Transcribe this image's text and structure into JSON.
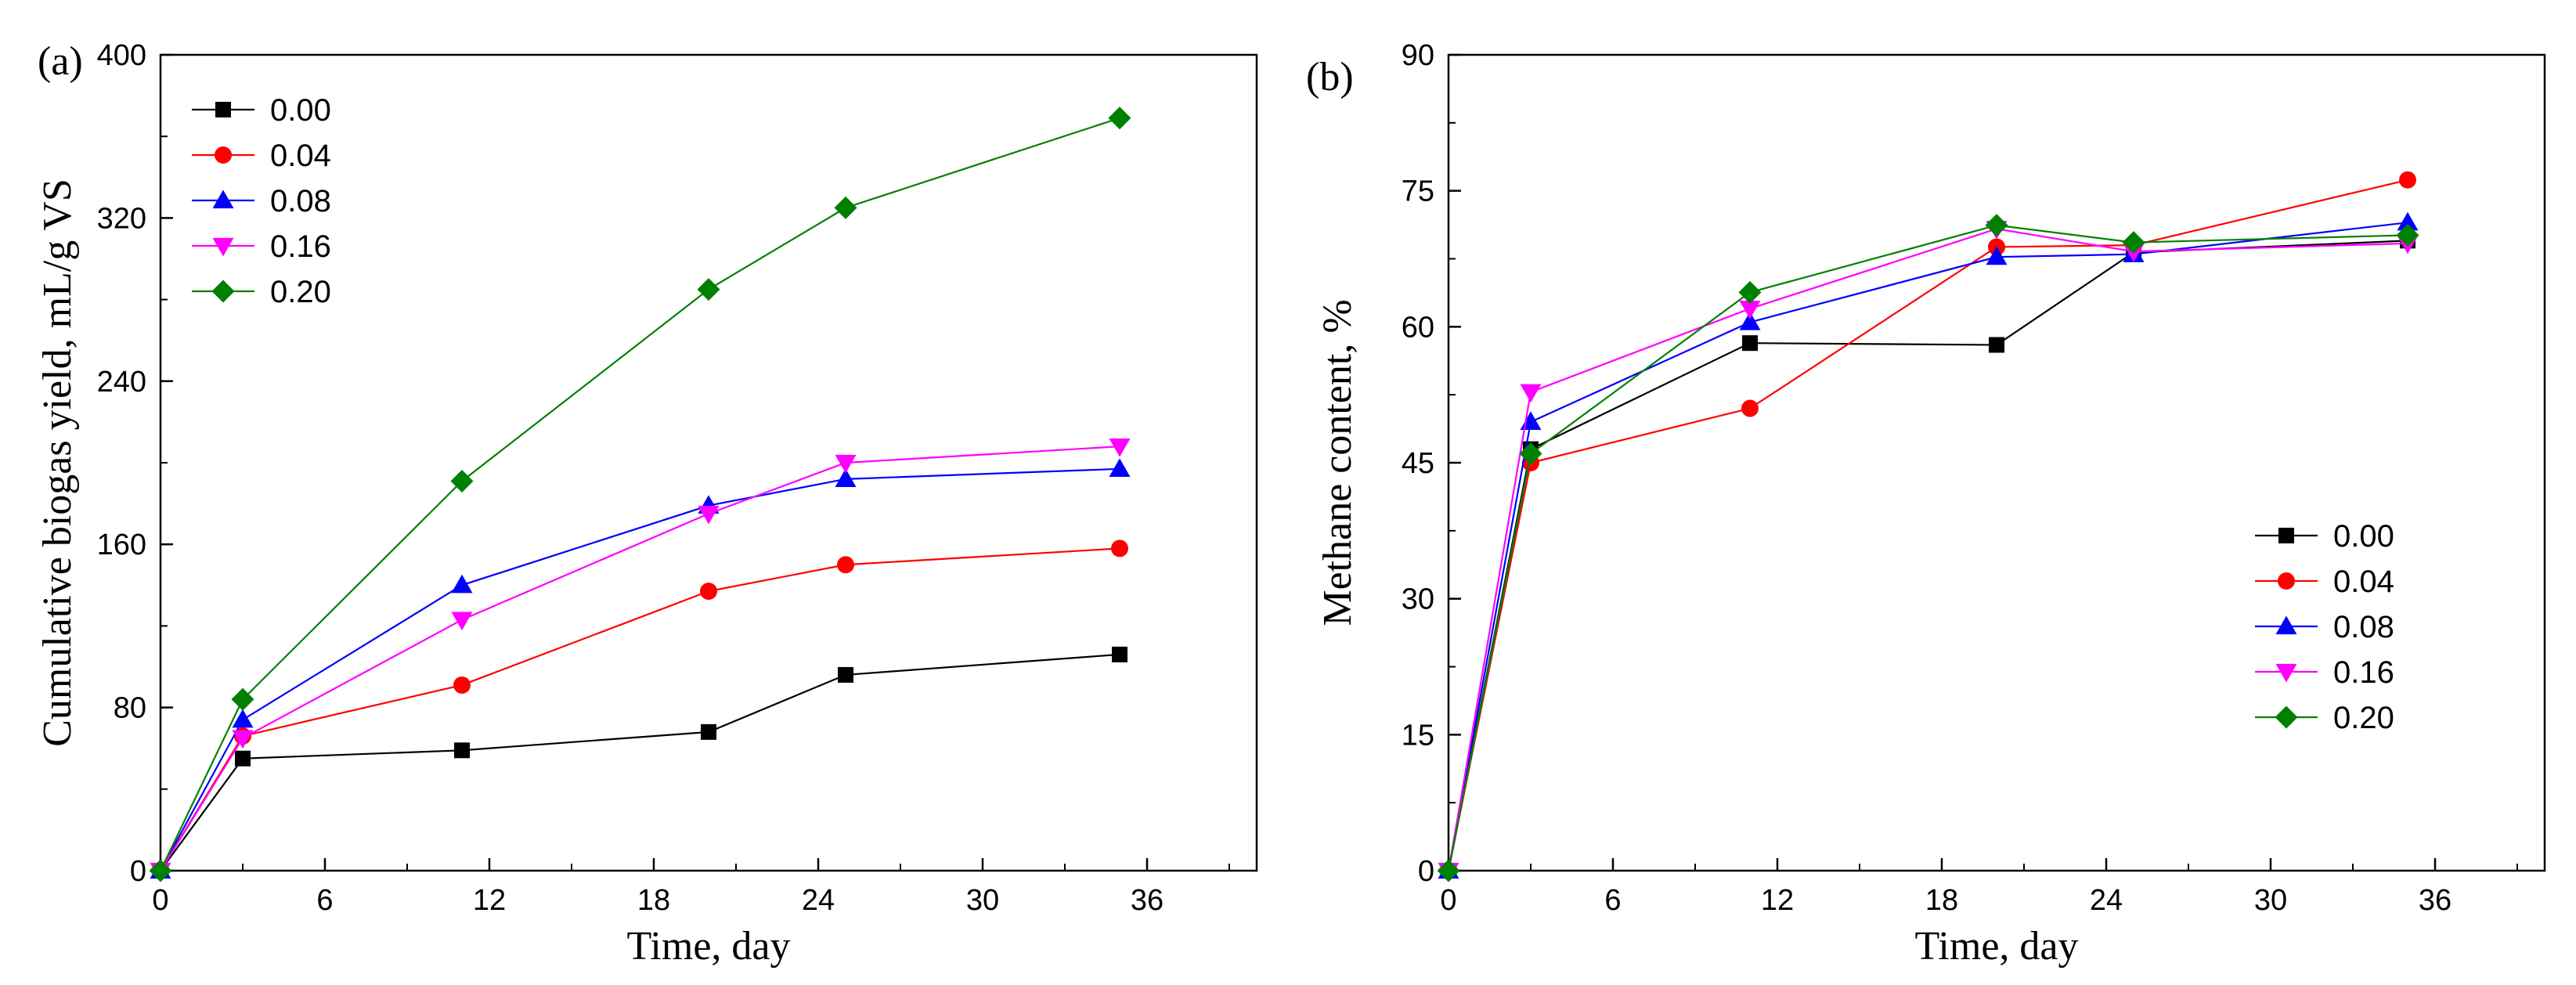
{
  "colors": {
    "s000": "#000000",
    "s004": "#ff0000",
    "s008": "#0000ff",
    "s016": "#ff00ff",
    "s020": "#008000"
  },
  "chart_data": [
    {
      "id": "a",
      "type": "line",
      "panel_label": "(a)",
      "title": "",
      "xlabel": "Time, day",
      "ylabel": "Cumulative biogas yield, mL/g VS",
      "xlim": [
        0,
        40
      ],
      "ylim": [
        0,
        400
      ],
      "xticks": [
        0,
        6,
        12,
        18,
        24,
        30,
        36
      ],
      "yticks": [
        0,
        80,
        160,
        240,
        320,
        400
      ],
      "x": [
        0,
        3,
        11,
        20,
        25,
        35
      ],
      "legend_position": "top-left",
      "series": [
        {
          "name": "0.00",
          "marker": "square",
          "color": "#000000",
          "values": [
            0,
            55,
            59,
            68,
            96,
            106
          ]
        },
        {
          "name": "0.04",
          "marker": "circle",
          "color": "#ff0000",
          "values": [
            0,
            66,
            91,
            137,
            150,
            158
          ]
        },
        {
          "name": "0.08",
          "marker": "triangle-up",
          "color": "#0000ff",
          "values": [
            0,
            74,
            140,
            179,
            192,
            197
          ]
        },
        {
          "name": "0.16",
          "marker": "triangle-down",
          "color": "#ff00ff",
          "values": [
            0,
            65,
            123,
            175,
            200,
            208
          ]
        },
        {
          "name": "0.20",
          "marker": "diamond",
          "color": "#008000",
          "values": [
            0,
            84,
            191,
            285,
            325,
            369
          ]
        }
      ]
    },
    {
      "id": "b",
      "type": "line",
      "panel_label": "(b)",
      "title": "",
      "xlabel": "Time, day",
      "ylabel": "Methane content, %",
      "xlim": [
        0,
        40
      ],
      "ylim": [
        0,
        90
      ],
      "xticks": [
        0,
        6,
        12,
        18,
        24,
        30,
        36
      ],
      "yticks": [
        0,
        15,
        30,
        45,
        60,
        75,
        90
      ],
      "x": [
        0,
        3,
        11,
        20,
        25,
        35
      ],
      "legend_position": "center-right",
      "series": [
        {
          "name": "0.00",
          "marker": "square",
          "color": "#000000",
          "values": [
            0,
            46.5,
            58.2,
            58,
            68.2,
            69.5
          ]
        },
        {
          "name": "0.04",
          "marker": "circle",
          "color": "#ff0000",
          "values": [
            0,
            45,
            51,
            68.8,
            69,
            76.2
          ]
        },
        {
          "name": "0.08",
          "marker": "triangle-up",
          "color": "#0000ff",
          "values": [
            0,
            49.5,
            60.5,
            67.7,
            68,
            71.5
          ]
        },
        {
          "name": "0.16",
          "marker": "triangle-down",
          "color": "#ff00ff",
          "values": [
            0,
            52.8,
            62,
            70.8,
            68.3,
            69.2
          ]
        },
        {
          "name": "0.20",
          "marker": "diamond",
          "color": "#008000",
          "values": [
            0,
            46,
            63.8,
            71.2,
            69.3,
            70.1
          ]
        }
      ]
    }
  ]
}
